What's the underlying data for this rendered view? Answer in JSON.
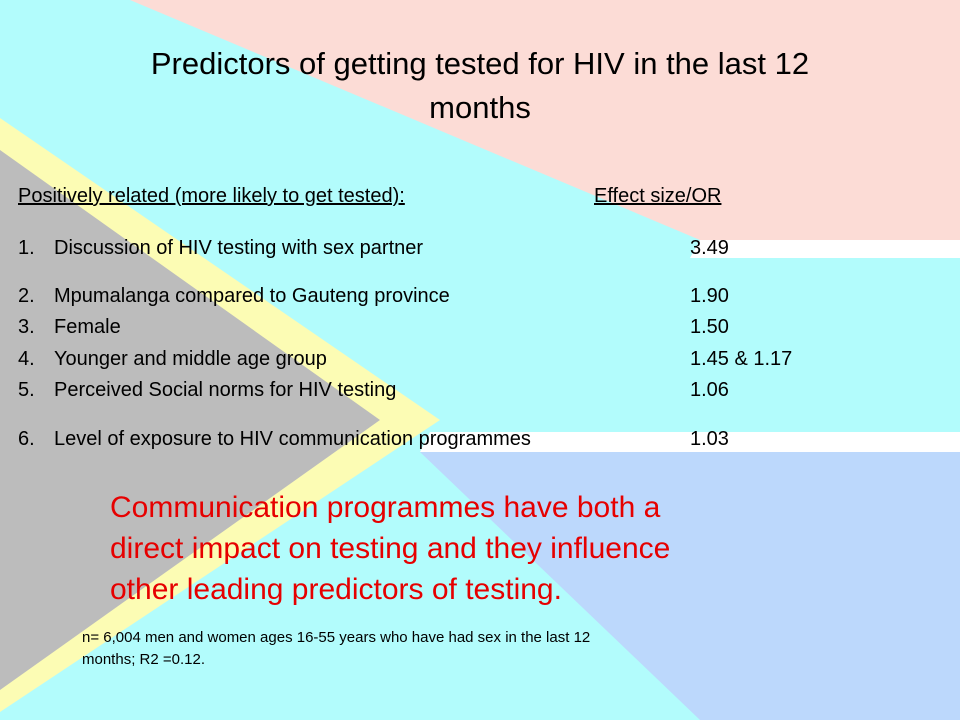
{
  "slide": {
    "title_line1": "Predictors of getting tested for HIV in the last 12",
    "title_line2": "months",
    "table": {
      "header_left": "Positively related (more likely to get tested):",
      "header_right": "Effect size/OR",
      "rows": [
        {
          "num": "1.",
          "label": "Discussion of HIV testing with sex partner",
          "value": "3.49"
        },
        {
          "num": "2.",
          "label": "Mpumalanga compared to Gauteng province",
          "value": "1.90"
        },
        {
          "num": "3.",
          "label": "Female",
          "value": "1.50"
        },
        {
          "num": "4.",
          "label": "Younger and middle age group",
          "value": "1.45 & 1.17"
        },
        {
          "num": "5.",
          "label": "Perceived Social norms for HIV testing",
          "value": "1.06"
        },
        {
          "num": "6.",
          "label": "Level of exposure to HIV communication programmes",
          "value": "1.03"
        }
      ]
    },
    "callout_line1": "Communication programmes have both a",
    "callout_line2": "direct impact on testing and they influence",
    "callout_line3": "other leading predictors of testing.",
    "footnote_line1": "n= 6,004  men and women ages 16-55 years who have had sex in the last 12",
    "footnote_line2": "months; R2 =0.12.",
    "colors": {
      "flag_pink": "#fcdcd6",
      "flag_cyan": "#b2fcfc",
      "flag_white": "#ffffff",
      "flag_yellow": "#fcfcb4",
      "flag_grey": "#bcbcbc",
      "flag_blue": "#bcd8fc",
      "callout_red": "#e60000"
    }
  }
}
